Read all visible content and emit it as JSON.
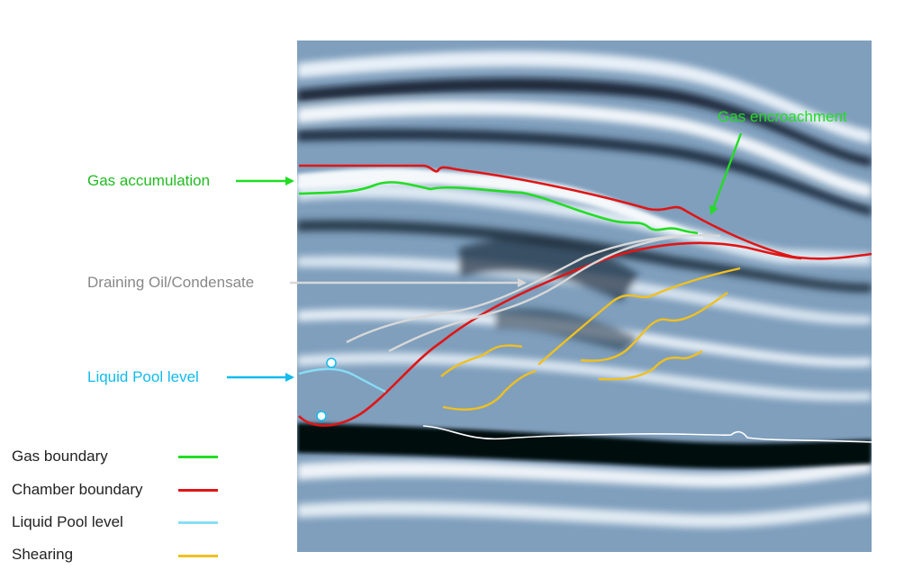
{
  "labels": {
    "gas_accumulation": "Gas accumulation",
    "gas_encroachment": "Gas encroachment",
    "draining": "Draining Oil/Condensate",
    "liquid_pool": "Liquid Pool level"
  },
  "legend": [
    {
      "label": "Gas boundary",
      "color": "#22dd22"
    },
    {
      "label": "Chamber boundary",
      "color": "#e01515"
    },
    {
      "label": "Liquid Pool level",
      "color": "#88ddf5"
    },
    {
      "label": "Shearing",
      "color": "#f0c020"
    }
  ],
  "colors": {
    "gas": "#22dd22",
    "gas_label": "#22bb22",
    "chamber": "#e01515",
    "liquid_label": "#11bbee",
    "liquid_line": "#88ddf5",
    "drain": "#d8d8d8",
    "drain_label": "#888888",
    "shear": "#f0c020",
    "base": "#ffffff"
  }
}
